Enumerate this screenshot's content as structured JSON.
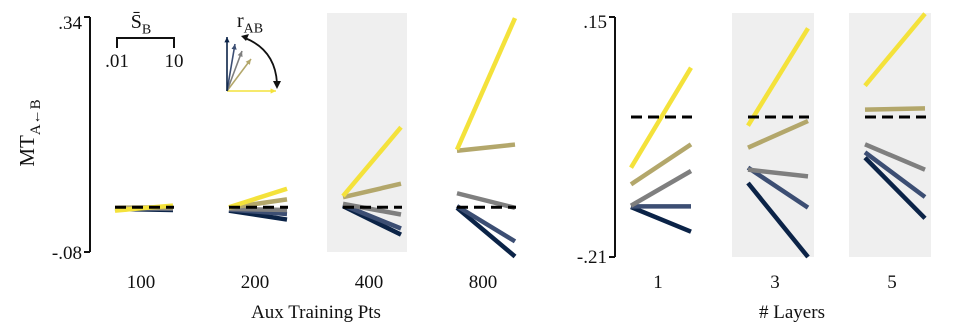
{
  "chart_data": [
    {
      "type": "line",
      "ylabel_main": "MT",
      "ylabel_sub": "A←B",
      "xlabel": "Aux Training Pts",
      "ytick_top": ".34",
      "ytick_bottom": "-.08",
      "ylim": [
        -0.08,
        0.34
      ],
      "x_axis": {
        "name": "S̄_B",
        "label_main": "S̄",
        "label_sub": "B",
        "range": [
          0.01,
          10
        ],
        "tick_left": ".01",
        "tick_right": "10"
      },
      "color_legend": {
        "label_main": "r",
        "label_sub": "AB",
        "low_color": "#0b2347",
        "high_color": "#f4e23b"
      },
      "panels": [
        {
          "label": "100",
          "shaded": false,
          "baseline": 0.0,
          "series": [
            {
              "color": "#0b2347",
              "y": [
                -0.003,
                -0.005
              ]
            },
            {
              "color": "#3c4e73",
              "y": [
                -0.002,
                -0.003
              ]
            },
            {
              "color": "#7f7f7f",
              "y": [
                -0.001,
                -0.002
              ]
            },
            {
              "color": "#b3a76b",
              "y": [
                -0.001,
                0.0
              ]
            },
            {
              "color": "#f4e23b",
              "y": [
                -0.006,
                0.003
              ]
            }
          ]
        },
        {
          "label": "200",
          "shaded": false,
          "baseline": 0.0,
          "series": [
            {
              "color": "#0b2347",
              "y": [
                -0.006,
                -0.022
              ]
            },
            {
              "color": "#3c4e73",
              "y": [
                -0.004,
                -0.012
              ]
            },
            {
              "color": "#7f7f7f",
              "y": [
                -0.003,
                -0.005
              ]
            },
            {
              "color": "#b3a76b",
              "y": [
                -0.001,
                0.014
              ]
            },
            {
              "color": "#f4e23b",
              "y": [
                0.0,
                0.033
              ]
            }
          ]
        },
        {
          "label": "400",
          "shaded": true,
          "baseline": 0.0,
          "series": [
            {
              "color": "#0b2347",
              "y": [
                0.002,
                -0.049
              ]
            },
            {
              "color": "#3c4e73",
              "y": [
                0.004,
                -0.038
              ]
            },
            {
              "color": "#7f7f7f",
              "y": [
                0.006,
                -0.013
              ]
            },
            {
              "color": "#b3a76b",
              "y": [
                0.018,
                0.042
              ]
            },
            {
              "color": "#f4e23b",
              "y": [
                0.02,
                0.143
              ]
            }
          ]
        },
        {
          "label": "800",
          "shaded": false,
          "baseline": 0.0,
          "series": [
            {
              "color": "#0b2347",
              "y": [
                -0.001,
                -0.088
              ]
            },
            {
              "color": "#3c4e73",
              "y": [
                0.002,
                -0.061
              ]
            },
            {
              "color": "#7f7f7f",
              "y": [
                0.025,
                -0.001
              ]
            },
            {
              "color": "#b3a76b",
              "y": [
                0.101,
                0.112
              ]
            },
            {
              "color": "#f4e23b",
              "y": [
                0.103,
                0.338
              ]
            }
          ]
        }
      ]
    },
    {
      "type": "line",
      "xlabel": "# Layers",
      "ytick_top": ".15",
      "ytick_bottom": "-.21",
      "ylim": [
        -0.21,
        0.15
      ],
      "panels": [
        {
          "label": "1",
          "shaded": false,
          "baseline": 0.0,
          "series": [
            {
              "color": "#0b2347",
              "y": [
                -0.135,
                -0.172
              ]
            },
            {
              "color": "#3c4e73",
              "y": [
                -0.134,
                -0.134
              ]
            },
            {
              "color": "#7f7f7f",
              "y": [
                -0.133,
                -0.081
              ]
            },
            {
              "color": "#b3a76b",
              "y": [
                -0.101,
                -0.041
              ]
            },
            {
              "color": "#f4e23b",
              "y": [
                -0.076,
                0.074
              ]
            }
          ]
        },
        {
          "label": "3",
          "shaded": true,
          "baseline": 0.0,
          "series": [
            {
              "color": "#0b2347",
              "y": [
                -0.099,
                -0.21
              ]
            },
            {
              "color": "#3c4e73",
              "y": [
                -0.076,
                -0.136
              ]
            },
            {
              "color": "#7f7f7f",
              "y": [
                -0.079,
                -0.089
              ]
            },
            {
              "color": "#b3a76b",
              "y": [
                -0.046,
                -0.006
              ]
            },
            {
              "color": "#f4e23b",
              "y": [
                -0.013,
                0.133
              ]
            }
          ]
        },
        {
          "label": "5",
          "shaded": true,
          "baseline": 0.0,
          "series": [
            {
              "color": "#0b2347",
              "y": [
                -0.061,
                -0.152
              ]
            },
            {
              "color": "#3c4e73",
              "y": [
                -0.053,
                -0.12
              ]
            },
            {
              "color": "#7f7f7f",
              "y": [
                -0.041,
                -0.079
              ]
            },
            {
              "color": "#b3a76b",
              "y": [
                0.011,
                0.013
              ]
            },
            {
              "color": "#f4e23b",
              "y": [
                0.047,
                0.155
              ]
            }
          ]
        }
      ]
    }
  ]
}
